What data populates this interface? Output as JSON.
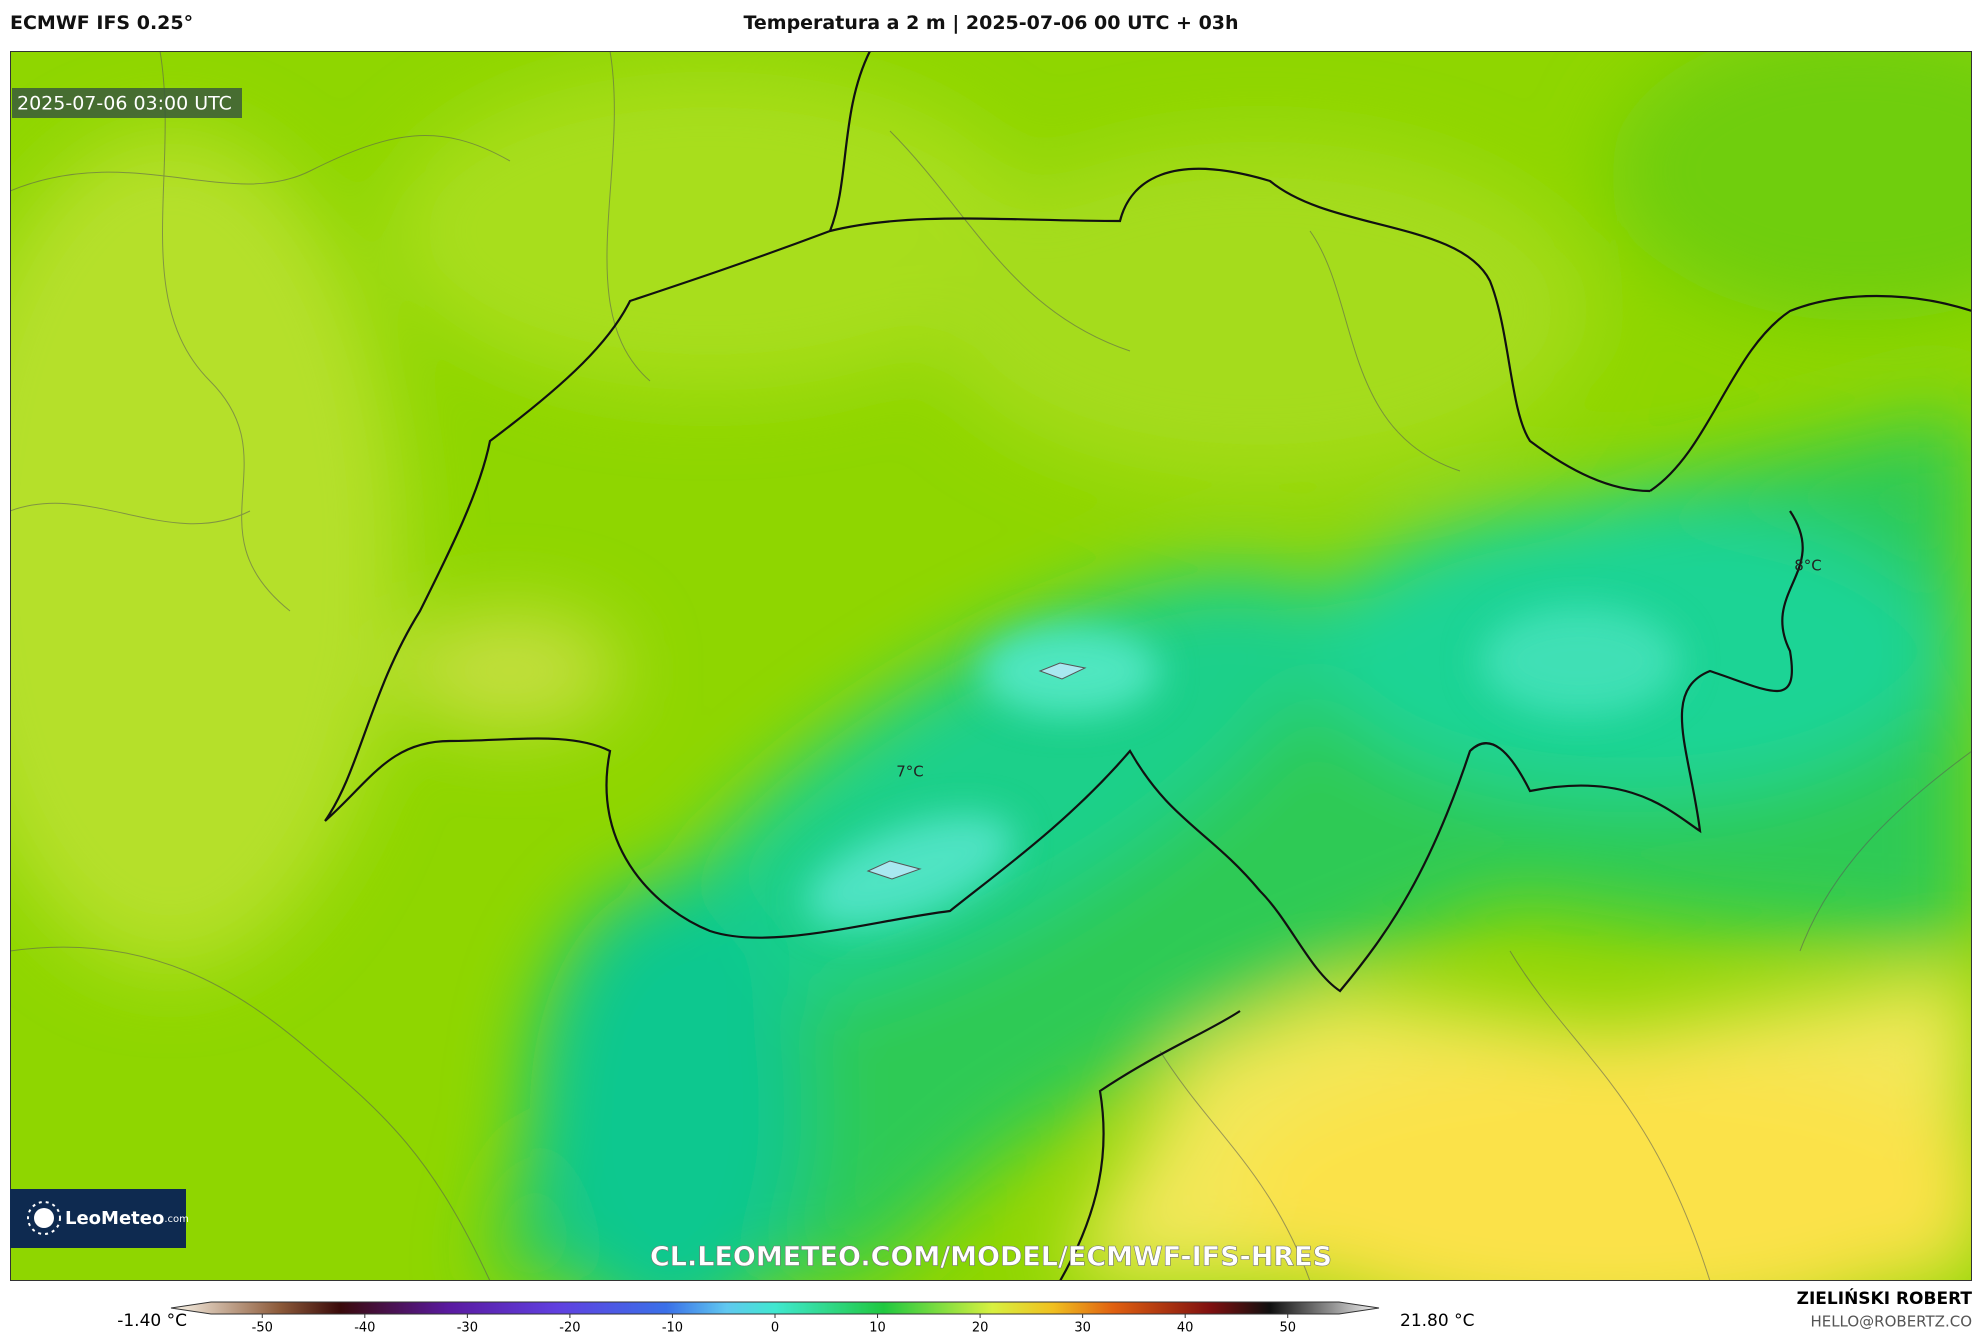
{
  "header": {
    "model": "ECMWF IFS 0.25°",
    "title": "Temperatura a 2 m | 2025-07-06 00 UTC + 03h"
  },
  "map": {
    "valid_time": "2025-07-06 03:00 UTC",
    "point_labels": [
      "7°C",
      "8°C"
    ],
    "logo": {
      "name": "LeoMeteo",
      "suffix": ".com"
    },
    "url": "CL.LEOMETEO.COM/MODEL/ECMWF-IFS-HRES"
  },
  "colorbar": {
    "min_label": "-1.40 °C",
    "max_label": "21.80 °C",
    "range": [
      -55,
      55
    ],
    "ticks": [
      -50,
      -40,
      -30,
      -20,
      -10,
      0,
      10,
      20,
      30,
      40,
      50
    ]
  },
  "footer": {
    "author": "ZIELIŃSKI ROBERT",
    "email": "HELLO@ROBERTZ.CO"
  }
}
